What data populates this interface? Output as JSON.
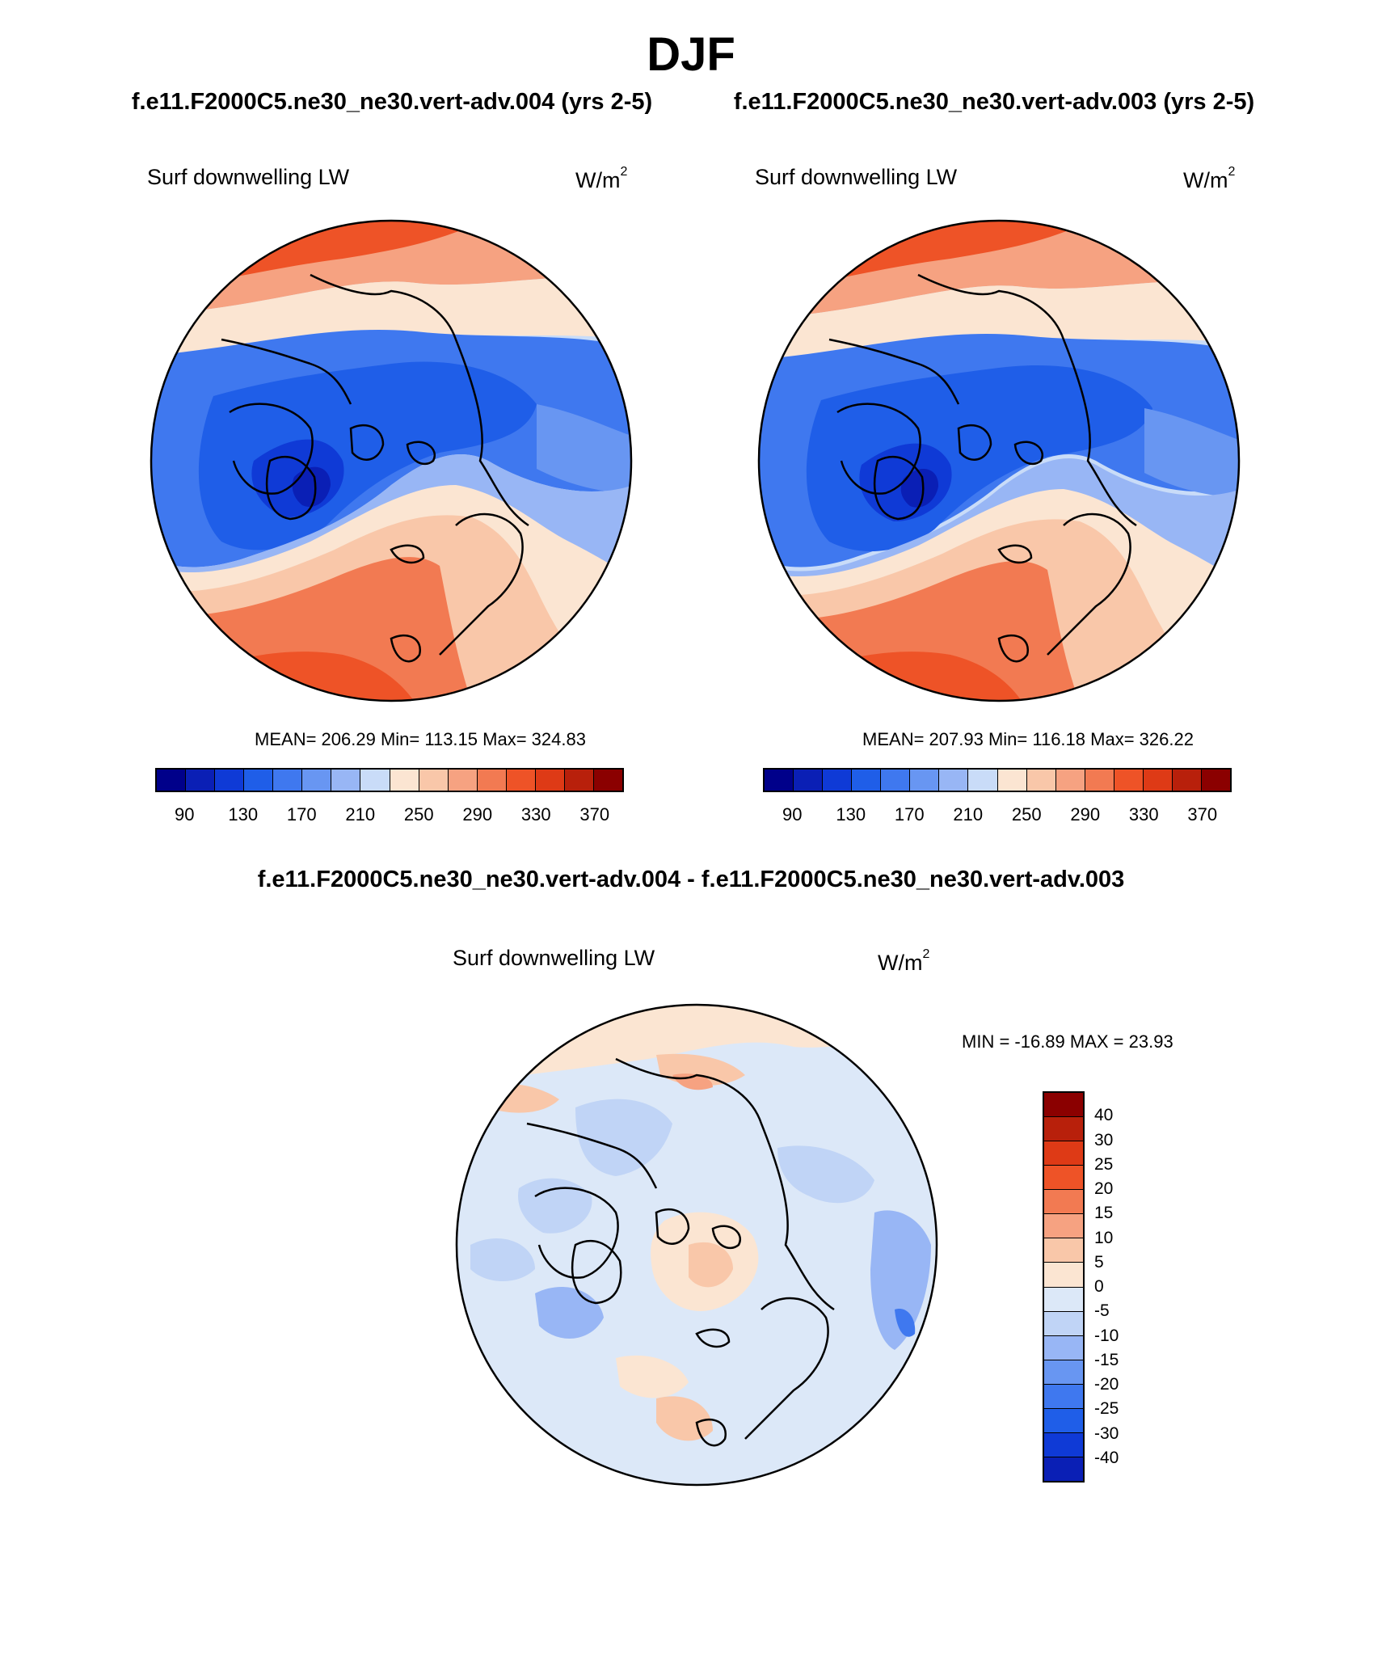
{
  "title": "DJF",
  "panels": [
    {
      "case_title": "f.e11.F2000C5.ne30_ne30.vert-adv.004 (yrs 2-5)",
      "variable": "Surf downwelling LW",
      "units_base": "W/m",
      "units_exp": "2",
      "stats": "MEAN= 206.29  Min= 113.15  Max= 324.83"
    },
    {
      "case_title": "f.e11.F2000C5.ne30_ne30.vert-adv.003 (yrs 2-5)",
      "variable": "Surf downwelling LW",
      "units_base": "W/m",
      "units_exp": "2",
      "stats": "MEAN= 207.93  Min= 116.18  Max= 326.22"
    }
  ],
  "main_colorbar": {
    "colors": [
      "#00008a",
      "#0a1fb5",
      "#0f3ad6",
      "#1f5ee8",
      "#3f78ef",
      "#6896f2",
      "#98b6f5",
      "#c9dcf8",
      "#fbe5d2",
      "#f9c7a9",
      "#f6a281",
      "#f27a52",
      "#ee5327",
      "#de3a16",
      "#b8200b",
      "#8b0000"
    ],
    "tick_labels": [
      "90",
      "130",
      "170",
      "210",
      "250",
      "290",
      "330",
      "370"
    ]
  },
  "diff_title": "f.e11.F2000C5.ne30_ne30.vert-adv.004 - f.e11.F2000C5.ne30_ne30.vert-adv.003",
  "diff_panel": {
    "variable": "Surf downwelling LW",
    "units_base": "W/m",
    "units_exp": "2",
    "stats": "MIN = -16.89 MAX =  23.93"
  },
  "diff_colorbar": {
    "colors": [
      "#8b0000",
      "#b8200b",
      "#de3a16",
      "#ee5327",
      "#f27a52",
      "#f6a281",
      "#f9c7a9",
      "#fbe5d2",
      "#dce8f8",
      "#c0d4f6",
      "#98b6f5",
      "#6896f2",
      "#3f78ef",
      "#1f5ee8",
      "#0f3ad6",
      "#0a1fb5"
    ],
    "tick_labels": [
      "40",
      "30",
      "25",
      "20",
      "15",
      "10",
      "5",
      "0",
      "-5",
      "-10",
      "-15",
      "-20",
      "-25",
      "-30",
      "-40"
    ]
  }
}
